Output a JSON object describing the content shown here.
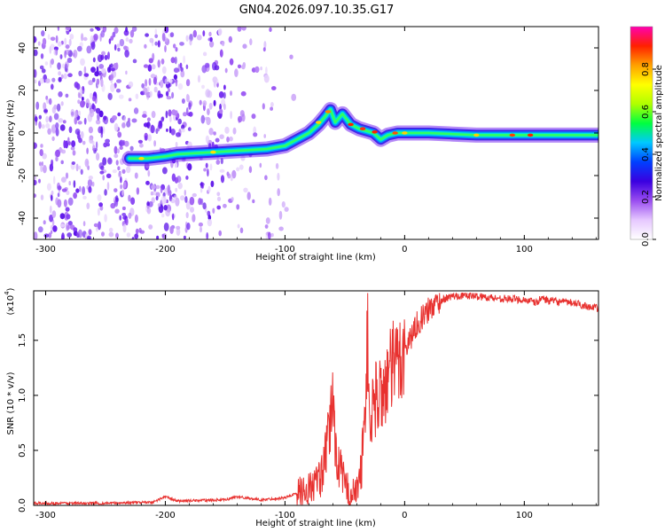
{
  "figure_title": "GN04.2026.097.10.35.G17",
  "chart_data": [
    {
      "type": "heatmap",
      "title": "GN04.2026.097.10.35.G17",
      "xlabel": "Height of straight line (km)",
      "ylabel": "Frequency (Hz)",
      "xlim": [
        -310,
        162
      ],
      "ylim": [
        -50,
        50
      ],
      "xticks": [
        -300,
        -200,
        -100,
        0,
        100
      ],
      "yticks": [
        -40,
        -20,
        0,
        20,
        40
      ],
      "colorbar": {
        "label": "Normalized spectral amplitude",
        "range": [
          0,
          1
        ],
        "ticks": [
          "0.0",
          "0.2",
          "0.4",
          "0.6",
          "0.8"
        ],
        "colors": [
          "#ffffff",
          "#e6c8ff",
          "#9a4df0",
          "#3a00e0",
          "#0040ff",
          "#00c8ff",
          "#00ff40",
          "#b0ff00",
          "#ffff00",
          "#ffa000",
          "#ff2000",
          "#ff00b0"
        ]
      },
      "ridge": {
        "x": [
          -230,
          -215,
          -200,
          -190,
          -175,
          -160,
          -145,
          -130,
          -115,
          -100,
          -90,
          -80,
          -72,
          -66,
          -62,
          -58,
          -52,
          -45,
          -38,
          -32,
          -26,
          -20,
          -14,
          -6,
          0,
          20,
          40,
          60,
          80,
          100,
          120,
          140,
          162
        ],
        "y": [
          -12,
          -12,
          -11,
          -10,
          -9.5,
          -9,
          -8.5,
          -8,
          -7.5,
          -6,
          -3,
          0,
          4,
          8,
          11,
          5,
          9,
          4,
          2,
          1,
          0,
          -3,
          -1,
          0,
          0,
          0,
          -0.5,
          -1,
          -1,
          -1,
          -1,
          -1,
          -1
        ]
      }
    },
    {
      "type": "line",
      "xlabel": "Height of straight line (km)",
      "ylabel": "SNR (10 * v/v)",
      "multiplier": "(x10",
      "multiplier_exp": "4",
      "xlim": [
        -310,
        162
      ],
      "ylim": [
        0,
        1.95
      ],
      "xticks": [
        -300,
        -200,
        -100,
        0,
        100
      ],
      "yticks": [
        "0.0",
        "0.5",
        "1.0",
        "1.5"
      ],
      "line_color": "#e8312f",
      "series": [
        {
          "name": "SNR",
          "x": [
            -310,
            -250,
            -210,
            -200,
            -190,
            -150,
            -140,
            -120,
            -100,
            -80,
            -70,
            -66,
            -62,
            -60,
            -58,
            -56,
            -53,
            -50,
            -45,
            -40,
            -36,
            -33,
            -31,
            -29,
            -27,
            -25,
            -22,
            -18,
            -14,
            -10,
            -6,
            -2,
            2,
            6,
            10,
            16,
            22,
            28,
            34,
            40,
            50,
            60,
            80,
            100,
            110,
            115,
            120,
            140,
            162
          ],
          "y": [
            0.02,
            0.02,
            0.03,
            0.08,
            0.04,
            0.05,
            0.08,
            0.05,
            0.07,
            0.15,
            0.25,
            0.45,
            0.75,
            1.05,
            0.55,
            0.4,
            0.3,
            0.2,
            0.1,
            0.12,
            0.35,
            0.9,
            1.55,
            0.6,
            0.9,
            0.95,
            1.0,
            1.05,
            1.15,
            1.25,
            1.3,
            1.4,
            1.45,
            1.55,
            1.65,
            1.72,
            1.8,
            1.85,
            1.88,
            1.9,
            1.91,
            1.9,
            1.88,
            1.87,
            1.84,
            1.89,
            1.86,
            1.84,
            1.79
          ]
        }
      ]
    }
  ]
}
